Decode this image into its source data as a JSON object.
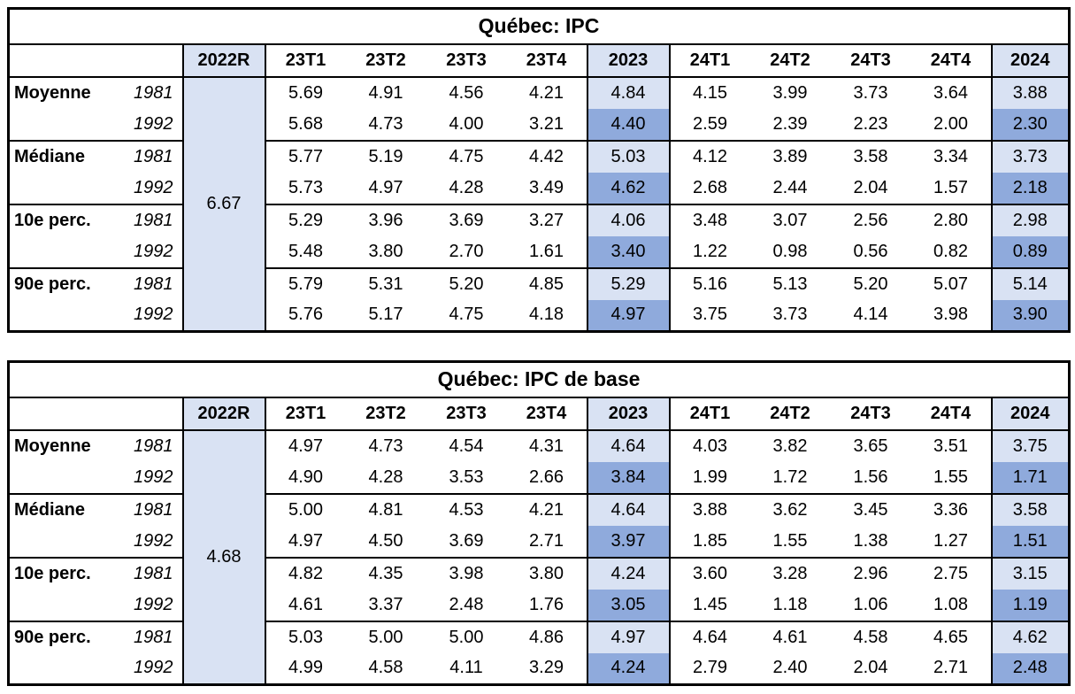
{
  "colors": {
    "header_fill": "#D9E2F3",
    "annual_1981_fill": "#D9E2F3",
    "annual_1992_fill": "#8FAADC",
    "border": "#000000",
    "background": "#ffffff"
  },
  "tables": [
    {
      "title": "Québec: IPC",
      "column_headers": [
        "",
        "",
        "2022R",
        "23T1",
        "23T2",
        "23T3",
        "23T4",
        "2023",
        "24T1",
        "24T2",
        "24T3",
        "24T4",
        "2024"
      ],
      "merged_2022r": "6.67",
      "groups": [
        {
          "label": "Moyenne",
          "series": [
            {
              "year": "1981",
              "values": [
                "5.69",
                "4.91",
                "4.56",
                "4.21",
                "4.84",
                "4.15",
                "3.99",
                "3.73",
                "3.64",
                "3.88"
              ]
            },
            {
              "year": "1992",
              "values": [
                "5.68",
                "4.73",
                "4.00",
                "3.21",
                "4.40",
                "2.59",
                "2.39",
                "2.23",
                "2.00",
                "2.30"
              ]
            }
          ]
        },
        {
          "label": "Médiane",
          "series": [
            {
              "year": "1981",
              "values": [
                "5.77",
                "5.19",
                "4.75",
                "4.42",
                "5.03",
                "4.12",
                "3.89",
                "3.58",
                "3.34",
                "3.73"
              ]
            },
            {
              "year": "1992",
              "values": [
                "5.73",
                "4.97",
                "4.28",
                "3.49",
                "4.62",
                "2.68",
                "2.44",
                "2.04",
                "1.57",
                "2.18"
              ]
            }
          ]
        },
        {
          "label": "10e perc.",
          "series": [
            {
              "year": "1981",
              "values": [
                "5.29",
                "3.96",
                "3.69",
                "3.27",
                "4.06",
                "3.48",
                "3.07",
                "2.56",
                "2.80",
                "2.98"
              ]
            },
            {
              "year": "1992",
              "values": [
                "5.48",
                "3.80",
                "2.70",
                "1.61",
                "3.40",
                "1.22",
                "0.98",
                "0.56",
                "0.82",
                "0.89"
              ]
            }
          ]
        },
        {
          "label": "90e perc.",
          "series": [
            {
              "year": "1981",
              "values": [
                "5.79",
                "5.31",
                "5.20",
                "4.85",
                "5.29",
                "5.16",
                "5.13",
                "5.20",
                "5.07",
                "5.14"
              ]
            },
            {
              "year": "1992",
              "values": [
                "5.76",
                "5.17",
                "4.75",
                "4.18",
                "4.97",
                "3.75",
                "3.73",
                "4.14",
                "3.98",
                "3.90"
              ]
            }
          ]
        }
      ]
    },
    {
      "title": "Québec: IPC de base",
      "column_headers": [
        "",
        "",
        "2022R",
        "23T1",
        "23T2",
        "23T3",
        "23T4",
        "2023",
        "24T1",
        "24T2",
        "24T3",
        "24T4",
        "2024"
      ],
      "merged_2022r": "4.68",
      "groups": [
        {
          "label": "Moyenne",
          "series": [
            {
              "year": "1981",
              "values": [
                "4.97",
                "4.73",
                "4.54",
                "4.31",
                "4.64",
                "4.03",
                "3.82",
                "3.65",
                "3.51",
                "3.75"
              ]
            },
            {
              "year": "1992",
              "values": [
                "4.90",
                "4.28",
                "3.53",
                "2.66",
                "3.84",
                "1.99",
                "1.72",
                "1.56",
                "1.55",
                "1.71"
              ]
            }
          ]
        },
        {
          "label": "Médiane",
          "series": [
            {
              "year": "1981",
              "values": [
                "5.00",
                "4.81",
                "4.53",
                "4.21",
                "4.64",
                "3.88",
                "3.62",
                "3.45",
                "3.36",
                "3.58"
              ]
            },
            {
              "year": "1992",
              "values": [
                "4.97",
                "4.50",
                "3.69",
                "2.71",
                "3.97",
                "1.85",
                "1.55",
                "1.38",
                "1.27",
                "1.51"
              ]
            }
          ]
        },
        {
          "label": "10e perc.",
          "series": [
            {
              "year": "1981",
              "values": [
                "4.82",
                "4.35",
                "3.98",
                "3.80",
                "4.24",
                "3.60",
                "3.28",
                "2.96",
                "2.75",
                "3.15"
              ]
            },
            {
              "year": "1992",
              "values": [
                "4.61",
                "3.37",
                "2.48",
                "1.76",
                "3.05",
                "1.45",
                "1.18",
                "1.06",
                "1.08",
                "1.19"
              ]
            }
          ]
        },
        {
          "label": "90e perc.",
          "series": [
            {
              "year": "1981",
              "values": [
                "5.03",
                "5.00",
                "5.00",
                "4.86",
                "4.97",
                "4.64",
                "4.61",
                "4.58",
                "4.65",
                "4.62"
              ]
            },
            {
              "year": "1992",
              "values": [
                "4.99",
                "4.58",
                "4.11",
                "3.29",
                "4.24",
                "2.79",
                "2.40",
                "2.04",
                "2.71",
                "2.48"
              ]
            }
          ]
        }
      ]
    }
  ]
}
